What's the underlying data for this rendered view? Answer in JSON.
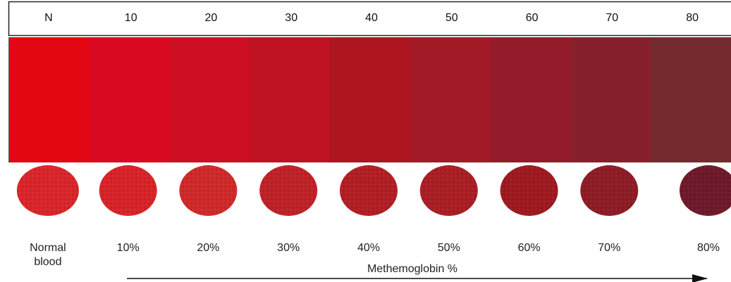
{
  "columns": [
    {
      "header": "N",
      "swatch_color": "#e30613",
      "sample_color": "#d9262b",
      "label_lines": [
        "Normal",
        "blood"
      ]
    },
    {
      "header": "10",
      "swatch_color": "#d90a22",
      "sample_color": "#d82428",
      "label_lines": [
        "10%"
      ]
    },
    {
      "header": "20",
      "swatch_color": "#cc0f22",
      "sample_color": "#cf2a2a",
      "label_lines": [
        "20%"
      ]
    },
    {
      "header": "30",
      "swatch_color": "#bf1222",
      "sample_color": "#bf2228",
      "label_lines": [
        "30%"
      ]
    },
    {
      "header": "40",
      "swatch_color": "#ad1620",
      "sample_color": "#b21f24",
      "label_lines": [
        "40%"
      ]
    },
    {
      "header": "50",
      "swatch_color": "#a21a26",
      "sample_color": "#aa1e24",
      "label_lines": [
        "50%"
      ]
    },
    {
      "header": "60",
      "swatch_color": "#941c2a",
      "sample_color": "#9e1a20",
      "label_lines": [
        "60%"
      ]
    },
    {
      "header": "70",
      "swatch_color": "#86202c",
      "sample_color": "#8e1c26",
      "label_lines": [
        "70%"
      ]
    },
    {
      "header": "80",
      "swatch_color": "#742a30",
      "sample_color": "#6e1a2a",
      "label_lines": [
        "80%"
      ]
    }
  ],
  "axis_title": "Methemoglobin %"
}
